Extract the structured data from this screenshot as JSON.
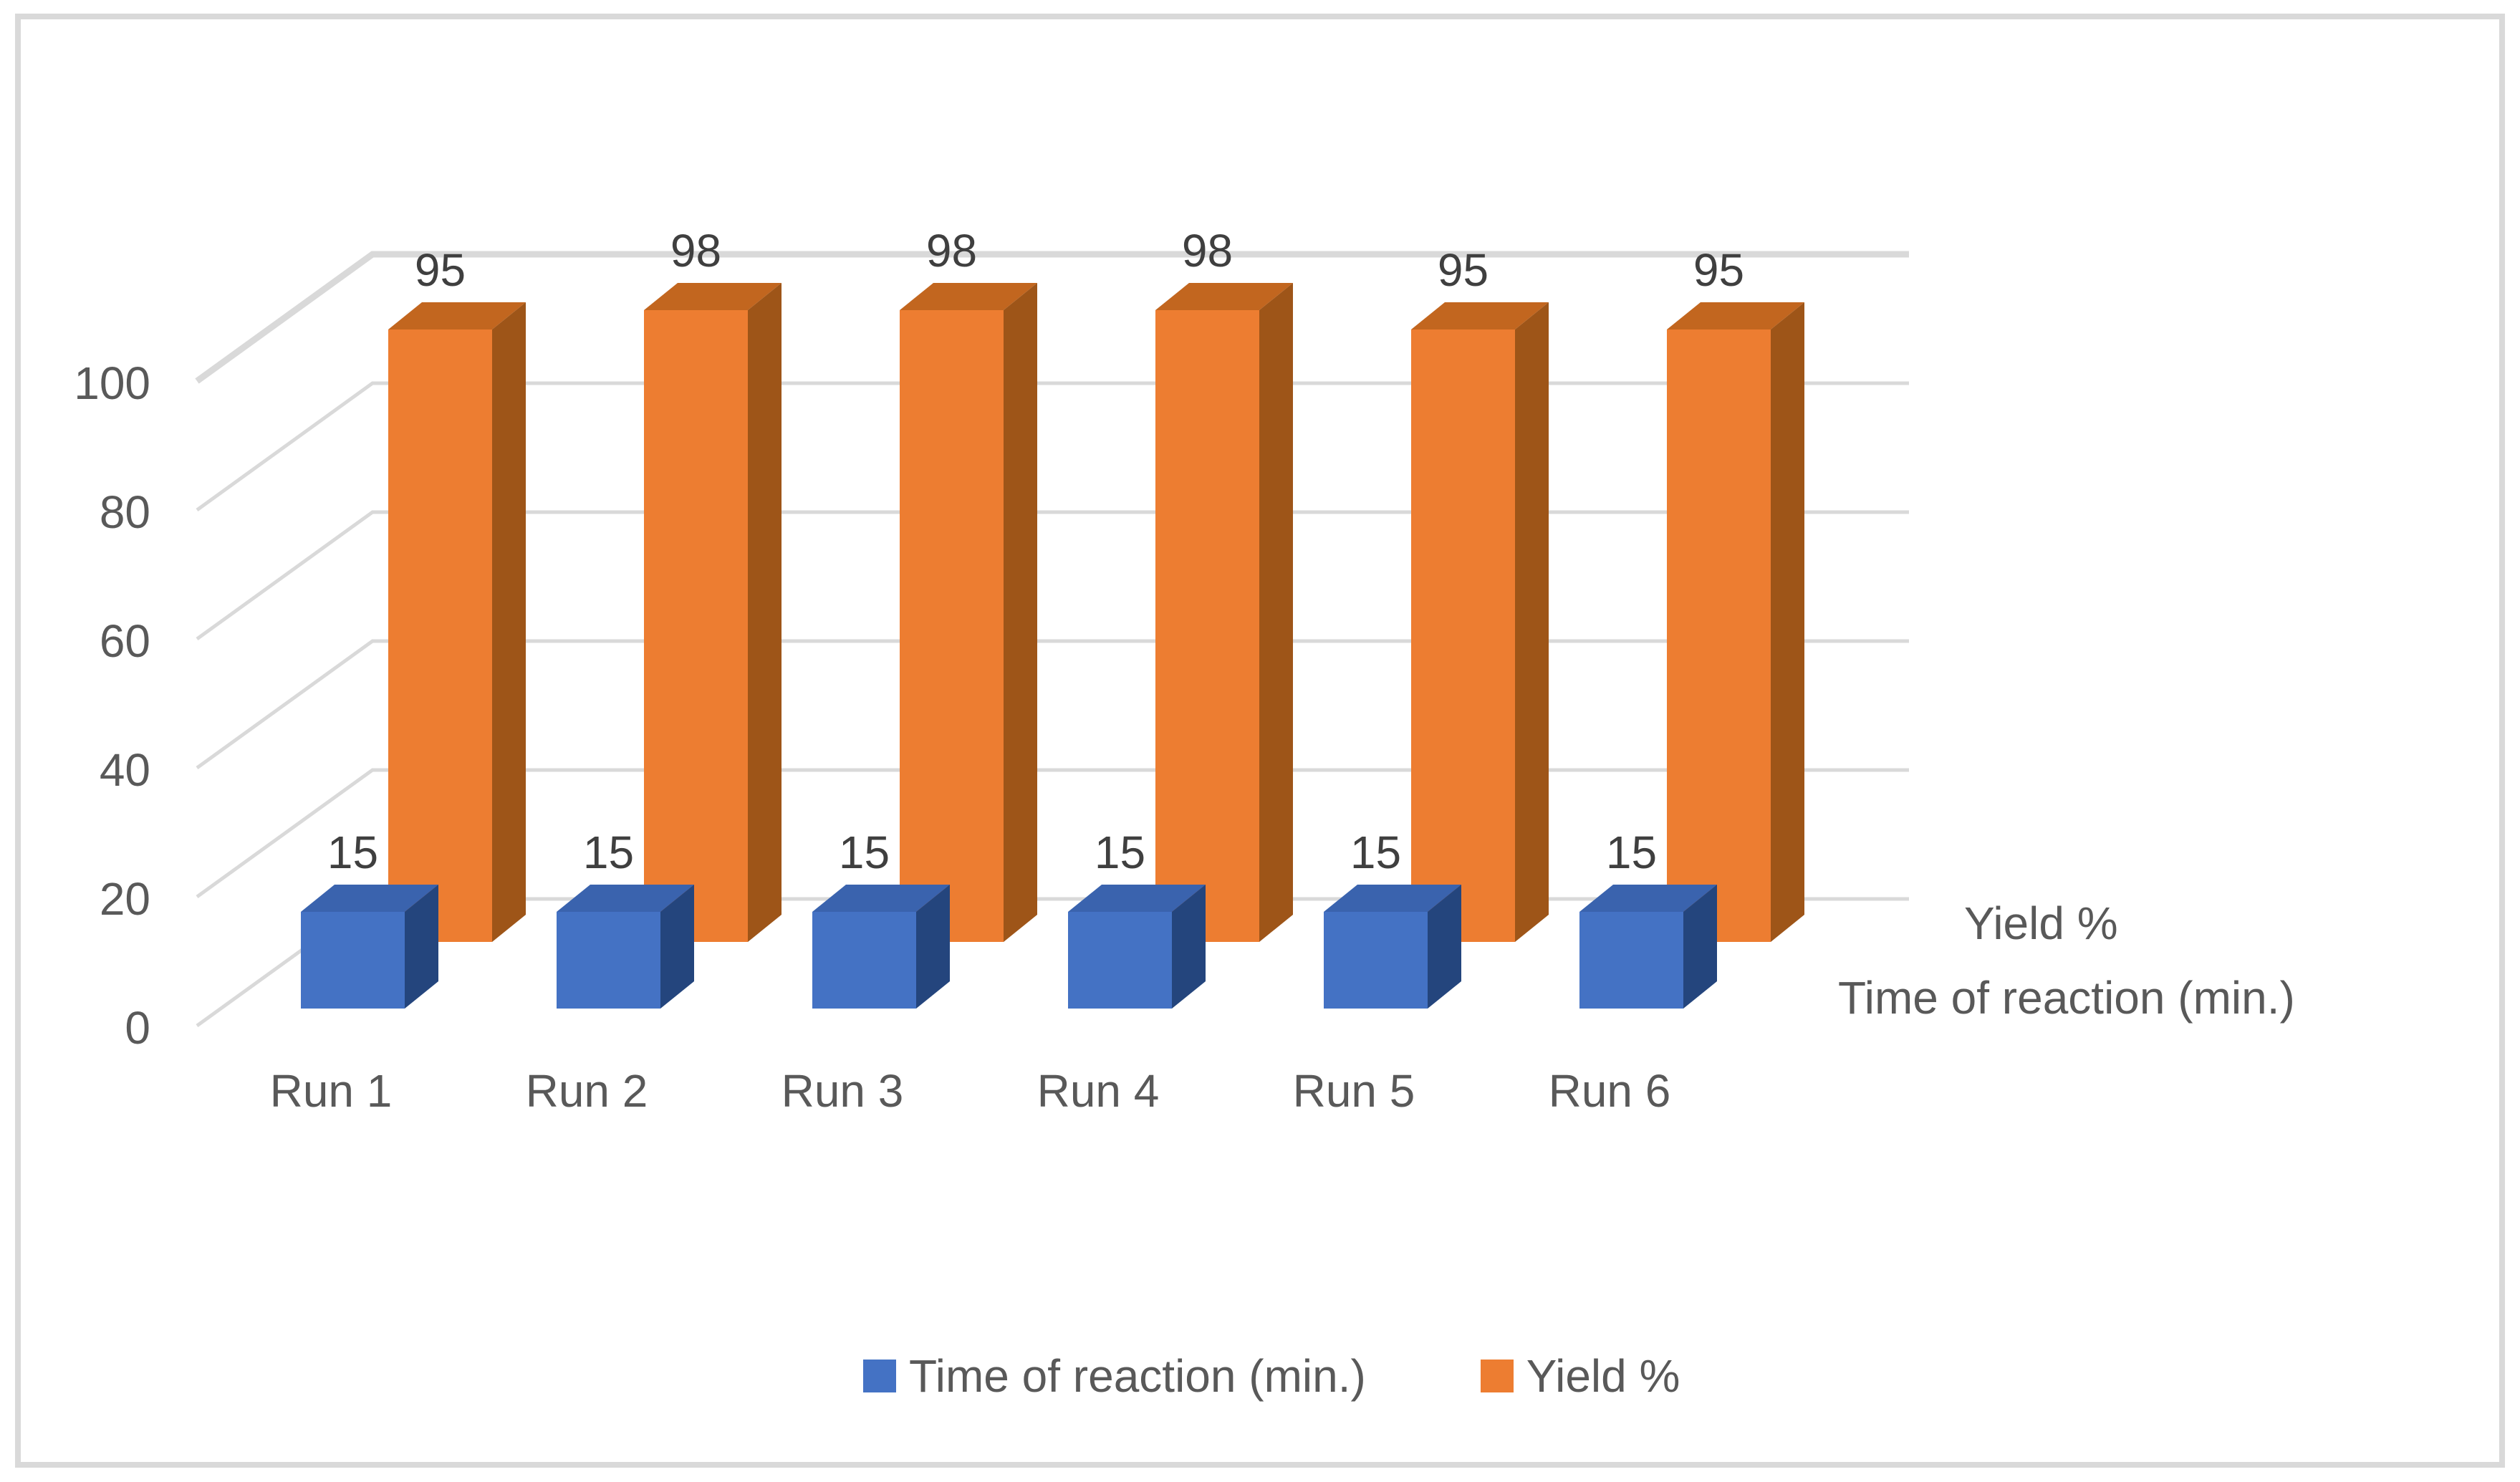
{
  "chart_data": {
    "type": "bar",
    "projection": "3d-column",
    "title": "",
    "categories": [
      "Run 1",
      "Run 2",
      "Run 3",
      "Run 4",
      "Run 5",
      "Run 6"
    ],
    "series": [
      {
        "name": "Time of reaction (min.)",
        "values": [
          15,
          15,
          15,
          15,
          15,
          15
        ],
        "color": "#4472C4",
        "color_top": "#3A63AE",
        "color_side": "#24457D",
        "row": "front"
      },
      {
        "name": "Yield %",
        "values": [
          95,
          98,
          98,
          98,
          95,
          95
        ],
        "color": "#ED7D31",
        "color_top": "#C2661F",
        "color_side": "#9E5518",
        "row": "back"
      }
    ],
    "value_axis": {
      "ticks": [
        0,
        20,
        40,
        60,
        80,
        100
      ],
      "min": 0,
      "max": 110
    },
    "depth_axis_labels": [
      "Yield %",
      "Time of reaction (min.)"
    ],
    "data_labels": true,
    "grid": true,
    "legend_position": "bottom",
    "colors": {
      "gridline": "#D9D9D9",
      "border": "#D9D9D9",
      "background": "#FFFFFF",
      "axis_text": "#595959",
      "data_label_text": "#3F3F3F"
    }
  }
}
